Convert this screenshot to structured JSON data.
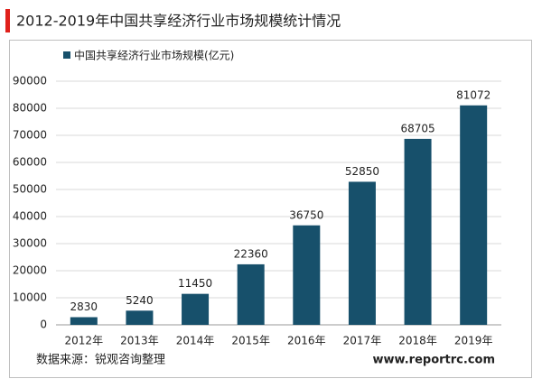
{
  "chart_data": {
    "type": "bar",
    "title": "2012-2019年中国共享经济行业市场规模统计情况",
    "categories": [
      "2012年",
      "2013年",
      "2014年",
      "2015年",
      "2016年",
      "2017年",
      "2018年",
      "2019年"
    ],
    "series": [
      {
        "name": "中国共享经济行业市场规模(亿元)",
        "color": "#17506b",
        "values": [
          2830,
          5240,
          11450,
          22360,
          36750,
          52850,
          68705,
          81072
        ]
      }
    ],
    "ylim": [
      0,
      90000
    ],
    "yticks": [
      0,
      10000,
      20000,
      30000,
      40000,
      50000,
      60000,
      70000,
      80000,
      90000
    ],
    "grid": true,
    "source": "数据来源：锐观咨询整理",
    "website": "www.reportrc.com"
  }
}
